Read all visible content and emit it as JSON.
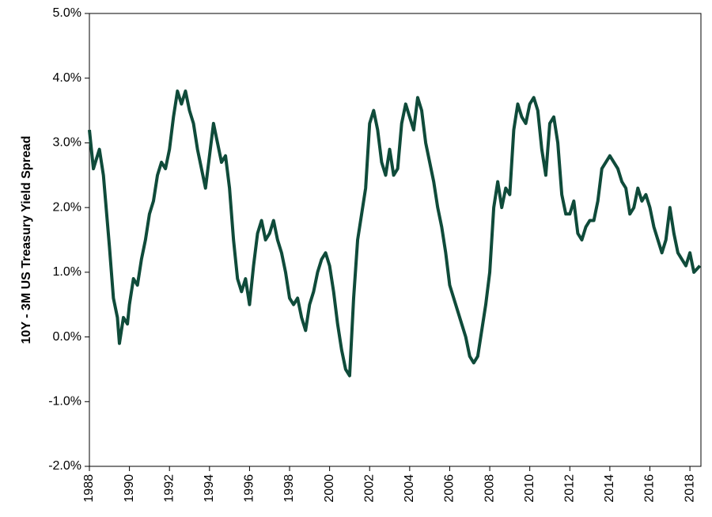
{
  "chart_data": {
    "type": "line",
    "ylabel": "10Y - 3M US Treasury Yield Spread",
    "x": [
      1988.0,
      1988.2,
      1988.5,
      1988.7,
      1989.0,
      1989.2,
      1989.4,
      1989.5,
      1989.7,
      1989.9,
      1990.0,
      1990.2,
      1990.4,
      1990.6,
      1990.8,
      1991.0,
      1991.2,
      1991.4,
      1991.6,
      1991.8,
      1992.0,
      1992.2,
      1992.4,
      1992.6,
      1992.8,
      1993.0,
      1993.2,
      1993.4,
      1993.6,
      1993.8,
      1994.0,
      1994.2,
      1994.4,
      1994.6,
      1994.8,
      1995.0,
      1995.2,
      1995.4,
      1995.6,
      1995.8,
      1996.0,
      1996.2,
      1996.4,
      1996.6,
      1996.8,
      1997.0,
      1997.2,
      1997.4,
      1997.6,
      1997.8,
      1998.0,
      1998.2,
      1998.4,
      1998.6,
      1998.8,
      1999.0,
      1999.2,
      1999.4,
      1999.6,
      1999.8,
      2000.0,
      2000.2,
      2000.4,
      2000.6,
      2000.8,
      2001.0,
      2001.2,
      2001.4,
      2001.6,
      2001.8,
      2002.0,
      2002.2,
      2002.4,
      2002.6,
      2002.8,
      2003.0,
      2003.2,
      2003.4,
      2003.6,
      2003.8,
      2004.0,
      2004.2,
      2004.4,
      2004.6,
      2004.8,
      2005.0,
      2005.2,
      2005.4,
      2005.6,
      2005.8,
      2006.0,
      2006.2,
      2006.4,
      2006.6,
      2006.8,
      2007.0,
      2007.2,
      2007.4,
      2007.6,
      2007.8,
      2008.0,
      2008.2,
      2008.4,
      2008.6,
      2008.8,
      2009.0,
      2009.2,
      2009.4,
      2009.6,
      2009.8,
      2010.0,
      2010.2,
      2010.4,
      2010.6,
      2010.8,
      2011.0,
      2011.2,
      2011.4,
      2011.6,
      2011.8,
      2012.0,
      2012.2,
      2012.4,
      2012.6,
      2012.8,
      2013.0,
      2013.2,
      2013.4,
      2013.6,
      2013.8,
      2014.0,
      2014.2,
      2014.4,
      2014.6,
      2014.8,
      2015.0,
      2015.2,
      2015.4,
      2015.6,
      2015.8,
      2016.0,
      2016.2,
      2016.4,
      2016.6,
      2016.8,
      2017.0,
      2017.2,
      2017.4,
      2017.6,
      2017.8,
      2018.0,
      2018.2,
      2018.5
    ],
    "series": [
      {
        "name": "10Y - 3M spread",
        "color": "#0f4b3a",
        "values": [
          3.2,
          2.6,
          2.9,
          2.5,
          1.4,
          0.6,
          0.3,
          -0.1,
          0.3,
          0.2,
          0.5,
          0.9,
          0.8,
          1.2,
          1.5,
          1.9,
          2.1,
          2.5,
          2.7,
          2.6,
          2.9,
          3.4,
          3.8,
          3.6,
          3.8,
          3.5,
          3.3,
          2.9,
          2.6,
          2.3,
          2.8,
          3.3,
          3.0,
          2.7,
          2.8,
          2.3,
          1.5,
          0.9,
          0.7,
          0.9,
          0.5,
          1.1,
          1.6,
          1.8,
          1.5,
          1.6,
          1.8,
          1.5,
          1.3,
          1.0,
          0.6,
          0.5,
          0.6,
          0.3,
          0.1,
          0.5,
          0.7,
          1.0,
          1.2,
          1.3,
          1.1,
          0.7,
          0.2,
          -0.2,
          -0.5,
          -0.6,
          0.6,
          1.5,
          1.9,
          2.3,
          3.3,
          3.5,
          3.2,
          2.7,
          2.5,
          2.9,
          2.5,
          2.6,
          3.3,
          3.6,
          3.4,
          3.2,
          3.7,
          3.5,
          3.0,
          2.7,
          2.4,
          2.0,
          1.7,
          1.3,
          0.8,
          0.6,
          0.4,
          0.2,
          0.0,
          -0.3,
          -0.4,
          -0.3,
          0.1,
          0.5,
          1.0,
          2.0,
          2.4,
          2.0,
          2.3,
          2.2,
          3.2,
          3.6,
          3.4,
          3.3,
          3.6,
          3.7,
          3.5,
          2.9,
          2.5,
          3.3,
          3.4,
          3.0,
          2.2,
          1.9,
          1.9,
          2.1,
          1.6,
          1.5,
          1.7,
          1.8,
          1.8,
          2.1,
          2.6,
          2.7,
          2.8,
          2.7,
          2.6,
          2.4,
          2.3,
          1.9,
          2.0,
          2.3,
          2.1,
          2.2,
          2.0,
          1.7,
          1.5,
          1.3,
          1.5,
          2.0,
          1.6,
          1.3,
          1.2,
          1.1,
          1.3,
          1.0,
          1.1
        ]
      }
    ],
    "xlim": [
      1988,
      2018.55
    ],
    "xticks": [
      1988,
      1990,
      1992,
      1994,
      1996,
      1998,
      2000,
      2002,
      2004,
      2006,
      2008,
      2010,
      2012,
      2014,
      2016,
      2018
    ],
    "ylim": [
      -2,
      5
    ],
    "yticks": [
      {
        "value": -2,
        "label": "-2.0%"
      },
      {
        "value": -1,
        "label": "-1.0%"
      },
      {
        "value": 0,
        "label": "0.0%"
      },
      {
        "value": 1,
        "label": "1.0%"
      },
      {
        "value": 2,
        "label": "2.0%"
      },
      {
        "value": 3,
        "label": "3.0%"
      },
      {
        "value": 4,
        "label": "4.0%"
      },
      {
        "value": 5,
        "label": "5.0%"
      }
    ],
    "grid": false
  }
}
